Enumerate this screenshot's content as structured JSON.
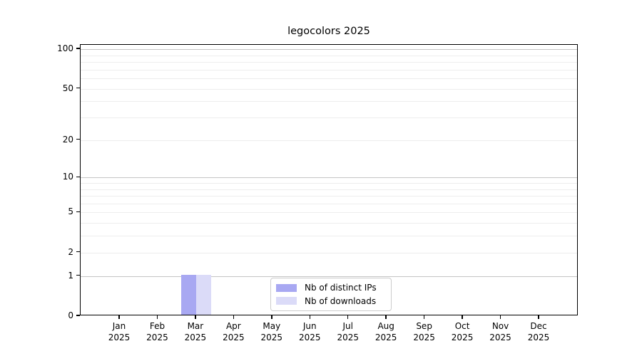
{
  "chart_data": {
    "type": "bar",
    "title": "legocolors 2025",
    "x_categories": [
      "Jan",
      "Feb",
      "Mar",
      "Apr",
      "May",
      "Jun",
      "Jul",
      "Aug",
      "Sep",
      "Oct",
      "Nov",
      "Dec"
    ],
    "x_year_label": "2025",
    "series": [
      {
        "name": "Nb of distinct IPs",
        "color": "#a8a8f2",
        "values": [
          0,
          0,
          1,
          0,
          0,
          0,
          0,
          0,
          0,
          0,
          0,
          0
        ]
      },
      {
        "name": "Nb of downloads",
        "color": "#dbdbf8",
        "values": [
          0,
          0,
          1,
          0,
          0,
          0,
          0,
          0,
          0,
          0,
          0,
          0
        ]
      }
    ],
    "y_axis": {
      "scale": "log1p",
      "max": 108,
      "tick_labels": [
        0,
        1,
        2,
        5,
        10,
        20,
        50,
        100
      ],
      "major_gridlines": [
        1,
        10,
        100
      ],
      "minor_gridlines": [
        2,
        3,
        4,
        5,
        6,
        7,
        8,
        9,
        20,
        30,
        40,
        50,
        60,
        70,
        80,
        90
      ]
    },
    "legend": {
      "position": "bottom-center"
    },
    "colors": {
      "background": "#ffffff",
      "spine": "#000000",
      "major_grid": "#c4c4c4",
      "minor_grid": "#ededed"
    }
  }
}
